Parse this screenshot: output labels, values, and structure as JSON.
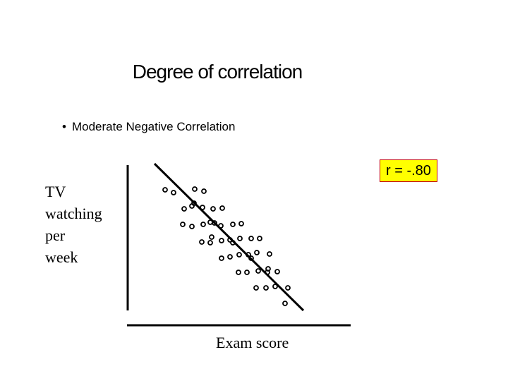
{
  "title": "Degree of correlation",
  "bullet": "Moderate Negative Correlation",
  "r_label": "r = -.80",
  "colors": {
    "box_fill": "#ffff00",
    "box_border": "#c00000",
    "ink": "#000000"
  },
  "chart_data": {
    "type": "scatter",
    "xlabel": "Exam score",
    "ylabel": "TV watching per week",
    "grid": false,
    "trend_line": true
  }
}
